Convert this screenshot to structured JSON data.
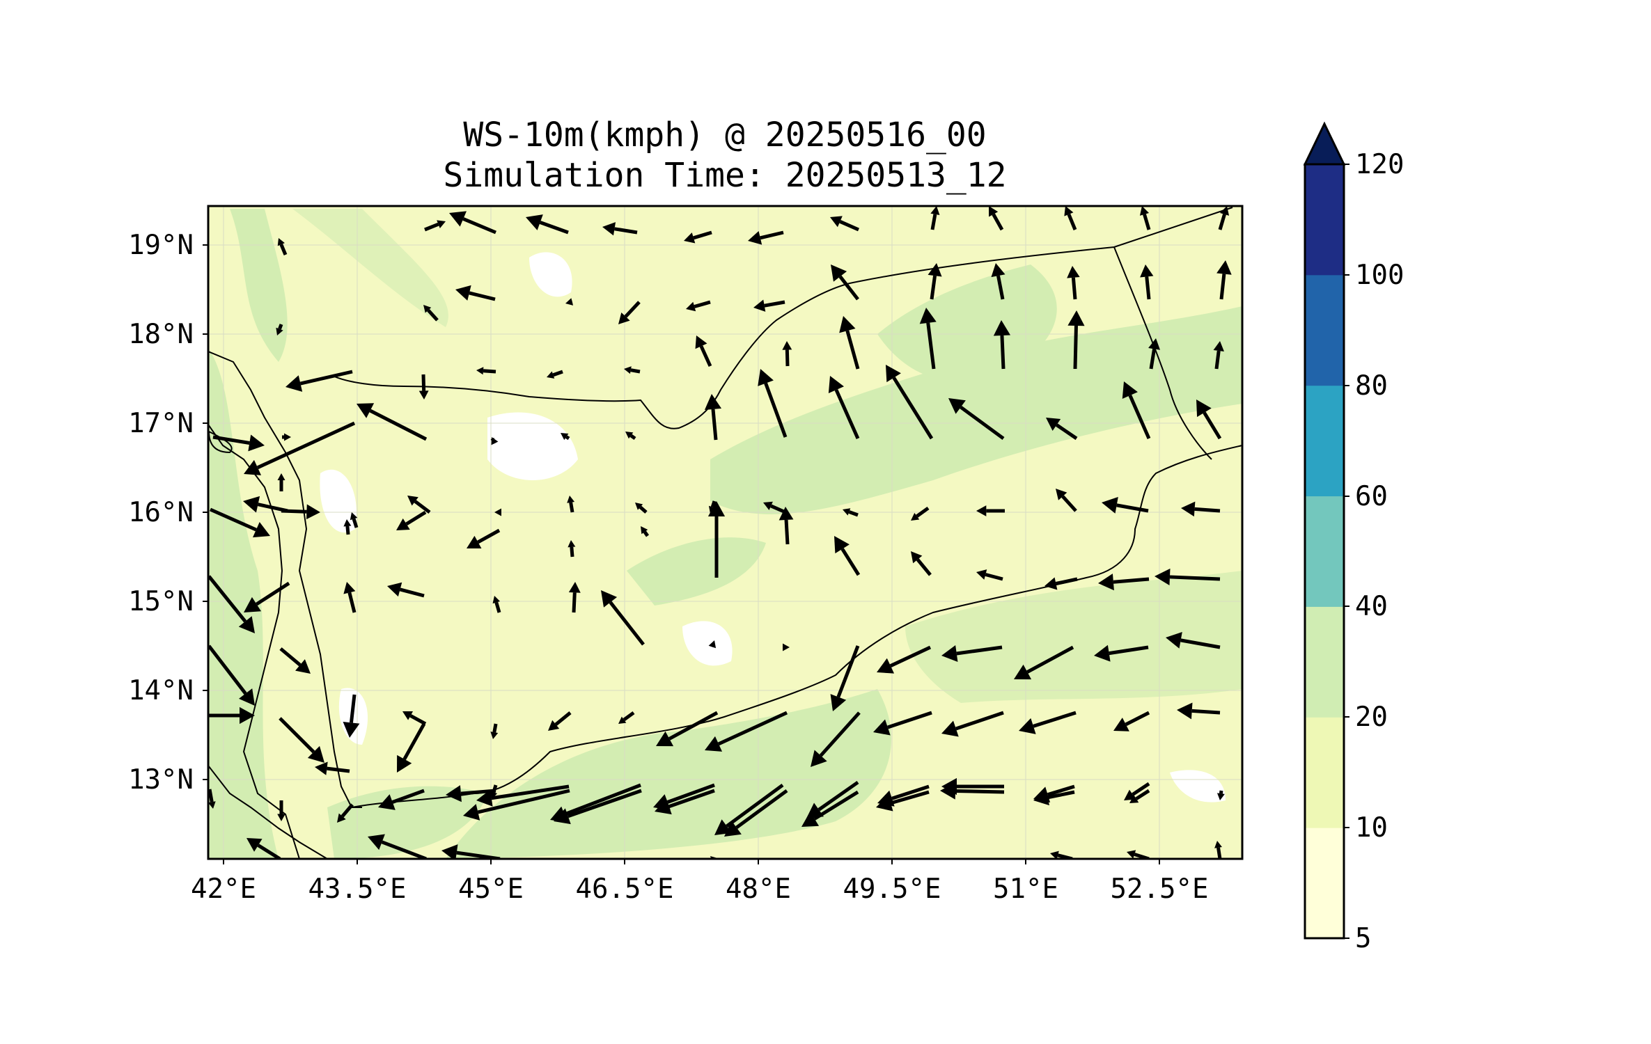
{
  "title_line1": "WS-10m(kmph) @ 20250516_00",
  "title_line2": "Simulation Time: 20250513_12",
  "x_ticks": [
    "42°E",
    "43.5°E",
    "45°E",
    "46.5°E",
    "48°E",
    "49.5°E",
    "51°E",
    "52.5°E"
  ],
  "y_ticks": [
    "19°N",
    "18°N",
    "17°N",
    "16°N",
    "15°N",
    "14°N",
    "13°N"
  ],
  "colorbar": {
    "labels": [
      "5",
      "10",
      "20",
      "40",
      "60",
      "80",
      "100",
      "120"
    ],
    "colors": [
      "#ffffd9",
      "#eef8b5",
      "#d0edb3",
      "#73c7bd",
      "#2ca3c3",
      "#2164aa",
      "#1e2d85"
    ],
    "extend_color": "#081d58"
  },
  "map_colors": {
    "lightest": "#fbfdd3",
    "light": "#eef8b9",
    "mid": "#d3edb2",
    "blank": "#ffffff",
    "arrow": "#000000"
  }
}
